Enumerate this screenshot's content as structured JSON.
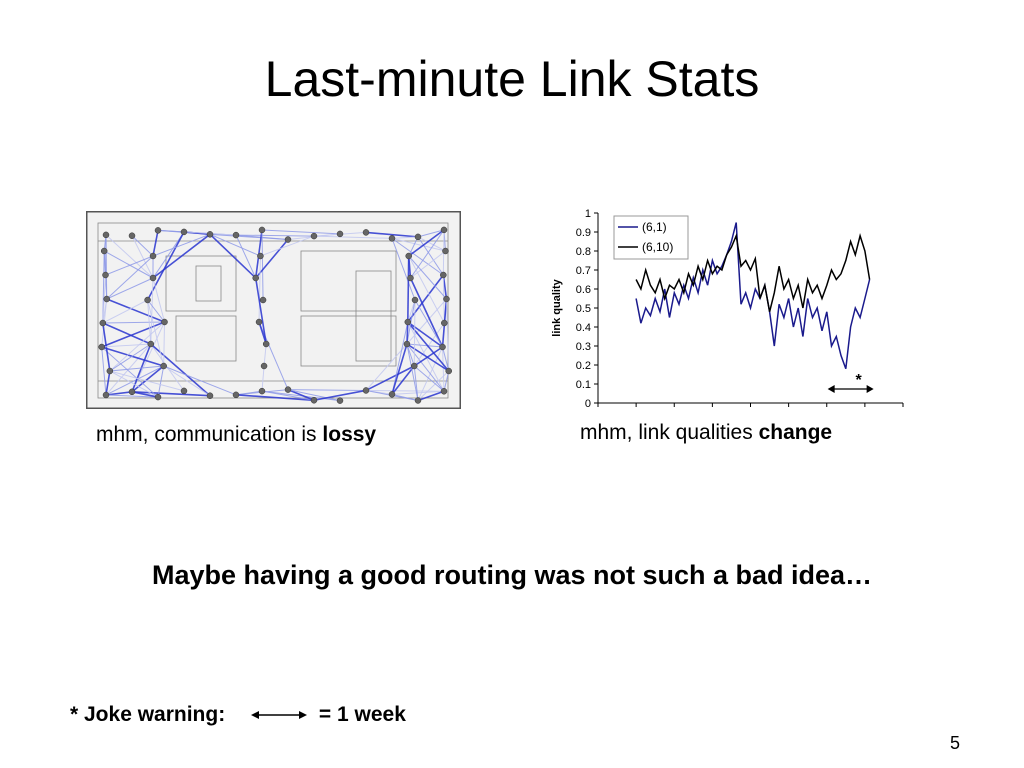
{
  "slide": {
    "title": "Last-minute Link Stats",
    "caption_left": {
      "text": "mhm, communication is ",
      "bold": "lossy"
    },
    "caption_right": {
      "text": "mhm, link qualities ",
      "bold": "change"
    },
    "headline": "Maybe having a good routing was not such a bad idea…",
    "footnote": {
      "label": "* Joke warning:",
      "meaning": "= 1 week"
    },
    "page_number": "5"
  },
  "chart_data": {
    "type": "line",
    "y_label": "link quality",
    "annotation": "*",
    "xlim": [
      0,
      8
    ],
    "ylim": [
      0,
      1
    ],
    "yticks": [
      0,
      0.1,
      0.2,
      0.3,
      0.4,
      0.5,
      0.6,
      0.7,
      0.8,
      0.9,
      1
    ],
    "legend": "top-left",
    "x": [
      1,
      1.125,
      1.25,
      1.375,
      1.5,
      1.625,
      1.75,
      1.875,
      2,
      2.125,
      2.25,
      2.375,
      2.5,
      2.625,
      2.75,
      2.875,
      3,
      3.125,
      3.25,
      3.375,
      3.5,
      3.625,
      3.75,
      3.875,
      4,
      4.125,
      4.25,
      4.375,
      4.5,
      4.625,
      4.75,
      4.875,
      5,
      5.125,
      5.25,
      5.375,
      5.5,
      5.625,
      5.75,
      5.875,
      6,
      6.125,
      6.25,
      6.375,
      6.5,
      6.625,
      6.75,
      6.875,
      7,
      7.125
    ],
    "series": [
      {
        "name": "(6,1)",
        "color": "#1a1a8c",
        "values": [
          0.55,
          0.42,
          0.5,
          0.46,
          0.55,
          0.48,
          0.6,
          0.45,
          0.58,
          0.52,
          0.62,
          0.55,
          0.66,
          0.58,
          0.7,
          0.62,
          0.75,
          0.68,
          0.72,
          0.78,
          0.85,
          0.95,
          0.52,
          0.58,
          0.5,
          0.6,
          0.55,
          0.62,
          0.48,
          0.3,
          0.52,
          0.45,
          0.55,
          0.4,
          0.5,
          0.35,
          0.55,
          0.45,
          0.5,
          0.38,
          0.48,
          0.3,
          0.35,
          0.25,
          0.18,
          0.4,
          0.5,
          0.45,
          0.55,
          0.65
        ]
      },
      {
        "name": "(6,10)",
        "color": "#000000",
        "values": [
          0.65,
          0.6,
          0.7,
          0.62,
          0.58,
          0.65,
          0.55,
          0.62,
          0.6,
          0.65,
          0.58,
          0.68,
          0.62,
          0.72,
          0.65,
          0.75,
          0.68,
          0.72,
          0.7,
          0.78,
          0.82,
          0.88,
          0.72,
          0.75,
          0.7,
          0.76,
          0.55,
          0.62,
          0.48,
          0.58,
          0.72,
          0.6,
          0.65,
          0.55,
          0.62,
          0.5,
          0.65,
          0.58,
          0.62,
          0.55,
          0.62,
          0.7,
          0.65,
          0.68,
          0.75,
          0.85,
          0.78,
          0.88,
          0.8,
          0.65
        ]
      }
    ]
  }
}
